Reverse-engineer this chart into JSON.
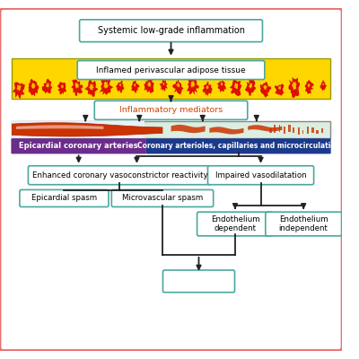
{
  "bg_color": "#ffffff",
  "border_color": "#e87070",
  "title": "Systemic low-grade inflammation",
  "adipose_label": "Inflamed perivascular adipose tissue",
  "mediators_label": "Inflammatory mediators",
  "epicardial_label": "Epicardial coronary arteries",
  "micro_label": "Coronary arterioles, capillaries and microcirculation",
  "enhanced_label": "Enhanced coronary vasoconstrictor reactivity",
  "impaired_label": "Impaired vasodilatation",
  "epispasm_label": "Epicardial spasm",
  "microspasm_label": "Microvascular spasm",
  "endo_dep_label": "Endothelium\ndependent",
  "endo_indep_label": "Endothelium\nindependent",
  "yellow_color": "#FFD700",
  "red_color": "#DD1100",
  "purple_color": "#6B2D8B",
  "blue_color": "#1B3A8C",
  "artery_bg": "#dceee0",
  "artery_left_bg": "#e8f0f8",
  "box_border": "#4BA8A0",
  "box_fill": "#ffffff",
  "arrow_color": "#222222",
  "mediators_text_color": "#cc4400"
}
